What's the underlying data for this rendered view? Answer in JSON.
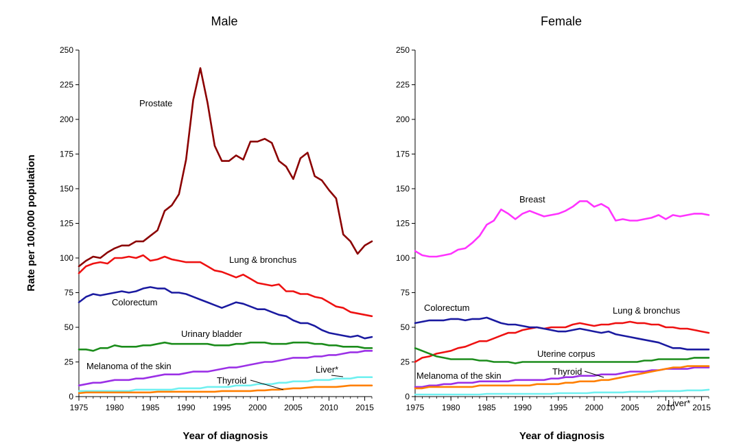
{
  "ylabel": "Rate per 100,000 population",
  "chart_data": [
    {
      "type": "line",
      "title": "Male",
      "xlabel": "Year of diagnosis",
      "xlim": [
        1975,
        2016
      ],
      "ylim": [
        0,
        250
      ],
      "xticks": [
        1975,
        1980,
        1985,
        1990,
        1995,
        2000,
        2005,
        2010,
        2015
      ],
      "yticks": [
        0,
        25,
        50,
        75,
        100,
        125,
        150,
        175,
        200,
        225,
        250
      ],
      "x": [
        1975,
        1976,
        1977,
        1978,
        1979,
        1980,
        1981,
        1982,
        1983,
        1984,
        1985,
        1986,
        1987,
        1988,
        1989,
        1990,
        1991,
        1992,
        1993,
        1994,
        1995,
        1996,
        1997,
        1998,
        1999,
        2000,
        2001,
        2002,
        2003,
        2004,
        2005,
        2006,
        2007,
        2008,
        2009,
        2010,
        2011,
        2012,
        2013,
        2014,
        2015,
        2016
      ],
      "series": [
        {
          "name": "Prostate",
          "color": "#8b0000",
          "values": [
            94,
            98,
            101,
            100,
            104,
            107,
            109,
            109,
            112,
            112,
            116,
            120,
            134,
            138,
            146,
            171,
            214,
            237,
            212,
            181,
            170,
            170,
            174,
            171,
            184,
            184,
            186,
            183,
            170,
            166,
            157,
            172,
            176,
            159,
            156,
            149,
            143,
            117,
            112,
            103,
            109,
            112
          ]
        },
        {
          "name": "Lung & bronchus",
          "color": "#ee1111",
          "values": [
            89,
            94,
            96,
            97,
            96,
            100,
            100,
            101,
            100,
            102,
            98,
            99,
            101,
            99,
            98,
            97,
            97,
            97,
            94,
            91,
            90,
            88,
            86,
            88,
            85,
            82,
            81,
            80,
            81,
            76,
            76,
            74,
            74,
            72,
            71,
            68,
            65,
            64,
            61,
            60,
            59,
            58
          ]
        },
        {
          "name": "Colorectum",
          "color": "#1a1aa0",
          "values": [
            68,
            72,
            74,
            73,
            74,
            75,
            76,
            75,
            76,
            78,
            79,
            78,
            78,
            75,
            75,
            74,
            72,
            70,
            68,
            66,
            64,
            66,
            68,
            67,
            65,
            63,
            63,
            61,
            59,
            58,
            55,
            53,
            53,
            51,
            48,
            46,
            45,
            44,
            43,
            44,
            42,
            43
          ]
        },
        {
          "name": "Urinary bladder",
          "color": "#1b8c1b",
          "values": [
            34,
            34,
            33,
            35,
            35,
            37,
            36,
            36,
            36,
            37,
            37,
            38,
            39,
            38,
            38,
            38,
            38,
            38,
            38,
            37,
            37,
            37,
            38,
            38,
            39,
            39,
            39,
            38,
            38,
            38,
            39,
            39,
            39,
            38,
            38,
            37,
            37,
            36,
            36,
            36,
            35,
            35
          ]
        },
        {
          "name": "Melanoma of the skin",
          "color": "#9b30e6",
          "values": [
            8,
            9,
            10,
            10,
            11,
            12,
            12,
            12,
            13,
            13,
            14,
            15,
            16,
            16,
            16,
            17,
            18,
            18,
            18,
            19,
            20,
            21,
            21,
            22,
            23,
            24,
            25,
            25,
            26,
            27,
            28,
            28,
            28,
            29,
            29,
            30,
            30,
            31,
            32,
            32,
            33,
            33
          ]
        },
        {
          "name": "Liver*",
          "color": "#70f0f0",
          "values": [
            4,
            4,
            4,
            4,
            4,
            4,
            4,
            4,
            5,
            5,
            5,
            5,
            5,
            5,
            6,
            6,
            6,
            6,
            7,
            7,
            7,
            7,
            8,
            8,
            8,
            9,
            9,
            9,
            10,
            10,
            11,
            11,
            11,
            12,
            12,
            12,
            13,
            13,
            13,
            14,
            14,
            14
          ]
        },
        {
          "name": "Thyroid",
          "color": "#ff7f00",
          "values": [
            2.5,
            3,
            3,
            3,
            3,
            3,
            3,
            3,
            3,
            3,
            3,
            3.5,
            3.5,
            3.5,
            3.5,
            3.5,
            3.5,
            3.5,
            3.5,
            3.5,
            4,
            4,
            4,
            4,
            4,
            4.5,
            4.5,
            5,
            5,
            5.5,
            6,
            6,
            6.5,
            7,
            7,
            7,
            7,
            7.5,
            8,
            8,
            8,
            8
          ]
        }
      ],
      "labels": {
        "Prostate": "Prostate",
        "Lung & bronchus": "Lung & bronchus",
        "Colorectum": "Colorectum",
        "Urinary bladder": "Urinary bladder",
        "Melanoma of the skin": "Melanoma of the skin",
        "Liver*": "Liver*",
        "Thyroid": "Thyroid"
      }
    },
    {
      "type": "line",
      "title": "Female",
      "xlabel": "Year of diagnosis",
      "xlim": [
        1975,
        2016
      ],
      "ylim": [
        0,
        250
      ],
      "xticks": [
        1975,
        1980,
        1985,
        1990,
        1995,
        2000,
        2005,
        2010,
        2015
      ],
      "yticks": [
        0,
        25,
        50,
        75,
        100,
        125,
        150,
        175,
        200,
        225,
        250
      ],
      "x": [
        1975,
        1976,
        1977,
        1978,
        1979,
        1980,
        1981,
        1982,
        1983,
        1984,
        1985,
        1986,
        1987,
        1988,
        1989,
        1990,
        1991,
        1992,
        1993,
        1994,
        1995,
        1996,
        1997,
        1998,
        1999,
        2000,
        2001,
        2002,
        2003,
        2004,
        2005,
        2006,
        2007,
        2008,
        2009,
        2010,
        2011,
        2012,
        2013,
        2014,
        2015,
        2016
      ],
      "series": [
        {
          "name": "Breast",
          "color": "#ff33ff",
          "values": [
            105,
            102,
            101,
            101,
            102,
            103,
            106,
            107,
            111,
            116,
            124,
            127,
            135,
            132,
            128,
            132,
            134,
            132,
            130,
            131,
            132,
            134,
            137,
            141,
            141,
            137,
            139,
            136,
            127,
            128,
            127,
            127,
            128,
            129,
            131,
            128,
            131,
            130,
            131,
            132,
            132,
            131
          ]
        },
        {
          "name": "Lung & bronchus",
          "color": "#ee1111",
          "values": [
            25,
            28,
            29,
            31,
            32,
            33,
            35,
            36,
            38,
            40,
            40,
            42,
            44,
            46,
            46,
            48,
            49,
            50,
            49,
            50,
            50,
            50,
            52,
            53,
            52,
            51,
            52,
            52,
            53,
            53,
            54,
            53,
            53,
            52,
            52,
            50,
            50,
            49,
            49,
            48,
            47,
            46
          ]
        },
        {
          "name": "Colorectum",
          "color": "#1a1aa0",
          "values": [
            53,
            54,
            55,
            55,
            55,
            56,
            56,
            55,
            56,
            56,
            57,
            55,
            53,
            52,
            52,
            51,
            50,
            50,
            49,
            48,
            47,
            47,
            48,
            49,
            48,
            47,
            46,
            47,
            45,
            44,
            43,
            42,
            41,
            40,
            39,
            37,
            35,
            35,
            34,
            34,
            34,
            34
          ]
        },
        {
          "name": "Uterine corpus",
          "color": "#1b8c1b",
          "values": [
            35,
            33,
            31,
            29,
            28,
            27,
            27,
            27,
            27,
            26,
            26,
            25,
            25,
            25,
            24,
            25,
            25,
            25,
            25,
            25,
            25,
            25,
            25,
            25,
            25,
            25,
            25,
            25,
            25,
            25,
            25,
            25,
            26,
            26,
            27,
            27,
            27,
            27,
            27,
            28,
            28,
            28
          ]
        },
        {
          "name": "Melanoma of the skin",
          "color": "#9b30e6",
          "values": [
            7,
            7,
            8,
            8,
            9,
            9,
            10,
            10,
            10,
            11,
            11,
            11,
            11,
            11,
            12,
            12,
            12,
            12,
            12,
            13,
            13,
            14,
            14,
            15,
            15,
            15,
            16,
            16,
            16,
            17,
            18,
            18,
            18,
            19,
            19,
            20,
            20,
            20,
            20,
            21,
            21,
            21
          ]
        },
        {
          "name": "Thyroid",
          "color": "#ff7f00",
          "values": [
            6,
            6,
            7,
            7,
            7,
            7,
            7,
            7,
            7,
            8,
            8,
            8,
            8,
            8,
            8,
            8,
            8,
            9,
            9,
            9,
            9,
            10,
            10,
            11,
            11,
            11,
            12,
            12,
            13,
            14,
            15,
            16,
            17,
            18,
            19,
            20,
            21,
            21,
            22,
            22,
            22,
            22
          ]
        },
        {
          "name": "Liver*",
          "color": "#70f0f0",
          "values": [
            1.5,
            1.5,
            1.5,
            1.5,
            1.5,
            1.5,
            1.5,
            1.5,
            1.5,
            1.5,
            2,
            2,
            2,
            2,
            2,
            2,
            2,
            2,
            2,
            2,
            2.5,
            2.5,
            2.5,
            2.5,
            2.5,
            3,
            3,
            3,
            3,
            3,
            3.5,
            3.5,
            3.5,
            3.5,
            4,
            4,
            4,
            4,
            4.5,
            4.5,
            4.5,
            5
          ]
        }
      ],
      "labels": {
        "Breast": "Breast",
        "Lung & bronchus": "Lung & bronchus",
        "Colorectum": "Colorectum",
        "Uterine corpus": "Uterine corpus",
        "Melanoma of the skin": "Melanoma of the skin",
        "Thyroid": "Thyroid",
        "Liver*": "Liver*"
      }
    }
  ]
}
